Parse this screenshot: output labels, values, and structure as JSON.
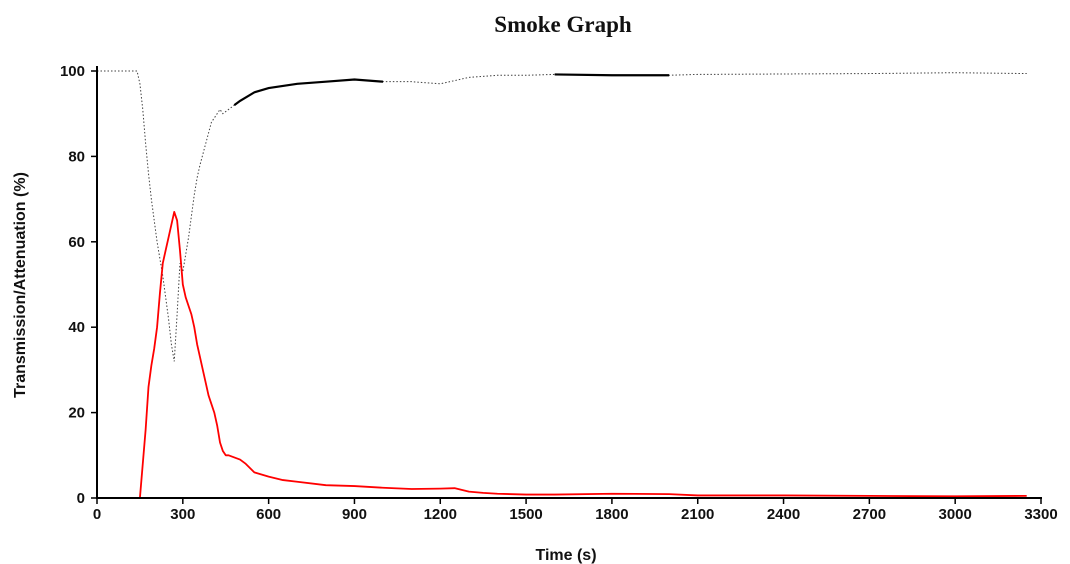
{
  "chart_data": {
    "type": "line",
    "title": "Smoke Graph",
    "xlabel": "Time (s)",
    "ylabel": "Transmission/Attenuation (%)",
    "xlim": [
      0,
      3300
    ],
    "ylim": [
      0,
      100
    ],
    "x_ticks": [
      0,
      300,
      600,
      900,
      1200,
      1500,
      1800,
      2100,
      2400,
      2700,
      3000,
      3300
    ],
    "y_ticks": [
      0,
      20,
      40,
      60,
      80,
      100
    ],
    "grid": false,
    "legend": "none",
    "series": [
      {
        "color": "#000000",
        "style": "dotted-with-solid-segments",
        "x": [
          0,
          140,
          150,
          160,
          170,
          180,
          190,
          200,
          210,
          220,
          230,
          240,
          250,
          260,
          270,
          280,
          290,
          300,
          310,
          320,
          330,
          340,
          350,
          360,
          380,
          400,
          420,
          430,
          440,
          460,
          480,
          500,
          550,
          600,
          650,
          700,
          800,
          900,
          1000,
          1100,
          1200,
          1300,
          1400,
          1500,
          1600,
          1800,
          2000,
          2100,
          2400,
          2700,
          3000,
          3250
        ],
        "y": [
          100,
          100,
          97,
          91,
          83,
          76,
          70,
          65,
          60,
          56,
          52,
          47,
          42,
          36,
          32,
          43,
          55,
          53,
          57,
          61,
          66,
          71,
          75,
          78,
          83,
          88,
          90,
          91,
          90,
          91,
          92,
          93,
          95,
          96,
          96.5,
          97,
          97.5,
          98,
          97.5,
          97.5,
          97,
          98.5,
          99,
          99,
          99.2,
          99,
          99,
          99.2,
          99.3,
          99.4,
          99.6,
          99.4
        ],
        "solid_ranges": [
          [
            480,
            1040
          ],
          [
            1540,
            2060
          ]
        ]
      },
      {
        "color": "#ff0000",
        "style": "solid",
        "x": [
          0,
          150,
          160,
          170,
          180,
          190,
          200,
          210,
          220,
          230,
          240,
          250,
          260,
          270,
          280,
          290,
          300,
          310,
          320,
          330,
          340,
          350,
          360,
          370,
          380,
          390,
          400,
          410,
          420,
          430,
          440,
          450,
          460,
          480,
          500,
          520,
          550,
          600,
          650,
          700,
          800,
          900,
          1000,
          1100,
          1200,
          1250,
          1300,
          1350,
          1400,
          1500,
          1600,
          1800,
          2000,
          2100,
          2400,
          2700,
          3000,
          3250
        ],
        "y": [
          0,
          0,
          8,
          16,
          26,
          31,
          35,
          40,
          48,
          55,
          58,
          61,
          64,
          67,
          65,
          58,
          50,
          47,
          45,
          43,
          40,
          36,
          33,
          30,
          27,
          24,
          22,
          20,
          17,
          13,
          11,
          10,
          10,
          9.5,
          9,
          8,
          6,
          5,
          4.2,
          3.8,
          3,
          2.8,
          2.4,
          2.1,
          2.2,
          2.3,
          1.5,
          1.2,
          1,
          0.8,
          0.8,
          1,
          0.9,
          0.6,
          0.6,
          0.5,
          0.4,
          0.5
        ]
      }
    ]
  }
}
